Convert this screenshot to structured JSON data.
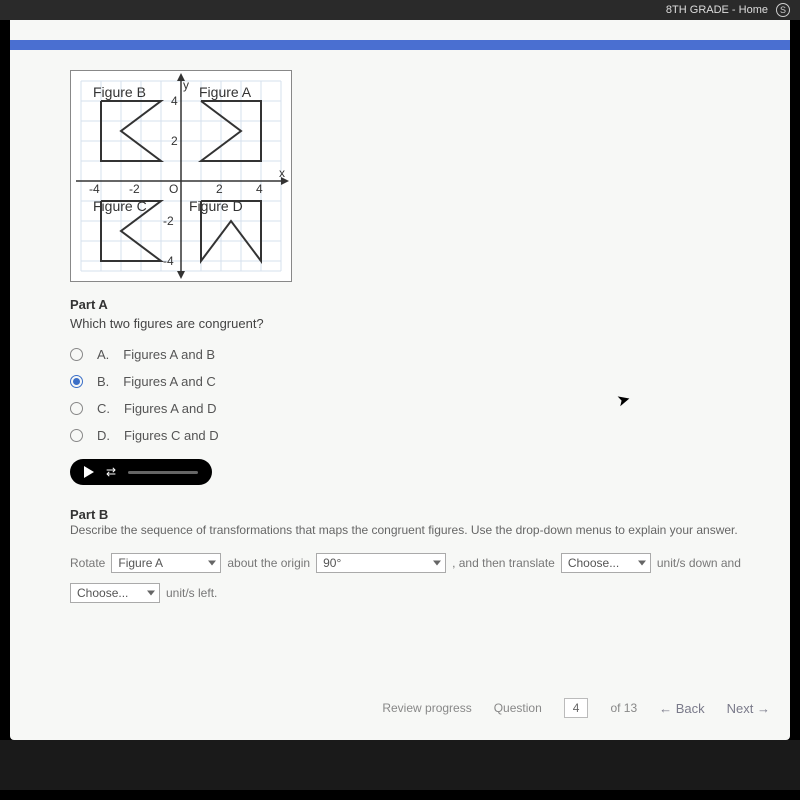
{
  "chrome": {
    "tab_title": "8TH GRADE - Home",
    "tab_badge": "S"
  },
  "coord_grid": {
    "type": "grid-diagram",
    "xlim": [
      -5,
      5
    ],
    "ylim": [
      -5,
      5
    ],
    "grid_color": "#d6e0ee",
    "axis_color": "#333333",
    "shape_stroke": "#333333",
    "label_font": 13,
    "axis_ticks": {
      "x": [
        -4,
        -2,
        2,
        4
      ],
      "y": [
        -4,
        -2,
        2,
        4
      ]
    },
    "labels": {
      "figA": "Figure A",
      "figB": "Figure B",
      "figC": "Figure C",
      "figD": "Figure D",
      "y": "y",
      "x": "x",
      "origin": "O"
    },
    "figures": {
      "A": [
        [
          1,
          4
        ],
        [
          4,
          4
        ],
        [
          4,
          1
        ],
        [
          1,
          1
        ],
        [
          3,
          2.5
        ],
        [
          1,
          4
        ]
      ],
      "B": [
        [
          -4,
          4
        ],
        [
          -1,
          4
        ],
        [
          -3,
          2.5
        ],
        [
          -1,
          1
        ],
        [
          -4,
          1
        ],
        [
          -4,
          4
        ]
      ],
      "C": [
        [
          -4,
          -1
        ],
        [
          -1,
          -1
        ],
        [
          -3,
          -2.5
        ],
        [
          -1,
          -4
        ],
        [
          -4,
          -4
        ],
        [
          -4,
          -1
        ]
      ],
      "D": [
        [
          1,
          -1
        ],
        [
          4,
          -1
        ],
        [
          4,
          -4
        ],
        [
          2.5,
          -2
        ],
        [
          1,
          -4
        ],
        [
          1,
          -1
        ]
      ]
    }
  },
  "partA": {
    "label": "Part A",
    "question": "Which two figures are congruent?",
    "selected_index": 1,
    "choices": [
      {
        "letter": "A.",
        "text": "Figures A and B"
      },
      {
        "letter": "B.",
        "text": "Figures A and C"
      },
      {
        "letter": "C.",
        "text": "Figures A and D"
      },
      {
        "letter": "D.",
        "text": "Figures C and D"
      }
    ]
  },
  "partB": {
    "label": "Part B",
    "question": "Describe the sequence of transformations that maps the congruent figures. Use the drop-down menus to explain your answer.",
    "row1_prefix": "Rotate",
    "dd_figure": "Figure A",
    "row1_mid": "about the origin",
    "dd_angle": "90°",
    "row1_mid2": ", and then translate",
    "dd_translate1": "Choose...",
    "row1_suffix": "unit/s down and",
    "dd_translate2": "Choose...",
    "row2_suffix": "unit/s left."
  },
  "footer": {
    "review": "Review progress",
    "question_label": "Question",
    "question_num": "4",
    "question_total": "of 13",
    "back": "← Back",
    "next": "Next →"
  }
}
